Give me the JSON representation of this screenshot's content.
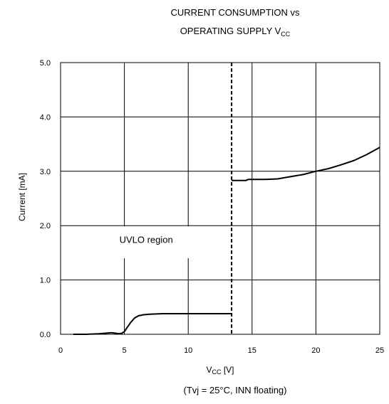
{
  "title_line1": "CURRENT CONSUMPTION  vs",
  "title_line2_main": "OPERATING SUPPLY V",
  "title_line2_sub": "CC",
  "conditions": "(Tvj = 25°C, INN floating)",
  "chart_data": {
    "type": "line",
    "xlabel_main": "V",
    "xlabel_sub": "CC",
    "xlabel_unit": " [V]",
    "ylabel": "Current [mA]",
    "xlim": [
      0,
      25
    ],
    "ylim": [
      0,
      5
    ],
    "x_ticks": [
      "0",
      "5",
      "10",
      "15",
      "20",
      "25"
    ],
    "y_ticks": [
      "0.0",
      "1.0",
      "2.0",
      "3.0",
      "4.0",
      "5.0"
    ],
    "grid": true,
    "annotation": {
      "text": "UVLO region",
      "x": 5,
      "y": 1.75
    },
    "uvlo_threshold_x": 13.4,
    "uvlo_markers_x": [
      5,
      10
    ],
    "series": [
      {
        "x": [
          1,
          2,
          3,
          3.5,
          4,
          4.3,
          4.6,
          4.8,
          5.0,
          5.2,
          5.5,
          5.8,
          6.1,
          6.5,
          7,
          7.5,
          8,
          9,
          10,
          11,
          12,
          13,
          13.4
        ],
        "y": [
          0.0,
          0.0,
          0.01,
          0.02,
          0.03,
          0.02,
          0.01,
          0.02,
          0.05,
          0.12,
          0.22,
          0.3,
          0.34,
          0.36,
          0.37,
          0.375,
          0.38,
          0.38,
          0.38,
          0.38,
          0.38,
          0.38,
          0.38
        ]
      },
      {
        "x": [
          13.4,
          14,
          14.5,
          14.7,
          15,
          16,
          17,
          18,
          19,
          20,
          21,
          22,
          23,
          24,
          25
        ],
        "y": [
          2.83,
          2.83,
          2.83,
          2.85,
          2.85,
          2.85,
          2.86,
          2.9,
          2.94,
          3.0,
          3.05,
          3.12,
          3.2,
          3.31,
          3.44
        ]
      }
    ]
  }
}
